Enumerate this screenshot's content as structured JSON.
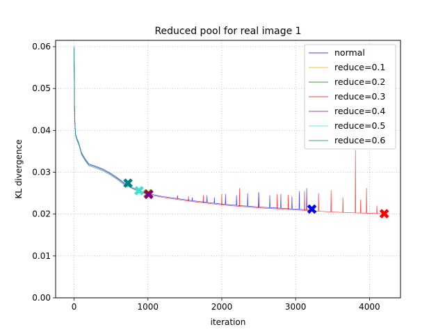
{
  "chart_data": {
    "type": "line",
    "title": "Reduced pool for real image 1",
    "xlabel": "iteration",
    "ylabel": "KL divergence",
    "xlim": [
      -250,
      4420
    ],
    "ylim": [
      0.0,
      0.0615
    ],
    "xticks": [
      0,
      1000,
      2000,
      3000,
      4000
    ],
    "yticks": [
      0.0,
      0.01,
      0.02,
      0.03,
      0.04,
      0.05,
      0.06
    ],
    "xtick_labels": [
      "0",
      "1000",
      "2000",
      "3000",
      "4000"
    ],
    "ytick_labels": [
      "0.00",
      "0.01",
      "0.02",
      "0.03",
      "0.04",
      "0.05",
      "0.06"
    ],
    "grid": true,
    "legend_position": "top-right",
    "base_curve": {
      "x": [
        0,
        2,
        5,
        10,
        20,
        40,
        60,
        80,
        100,
        150,
        200,
        300,
        400,
        500,
        600,
        700,
        800,
        900,
        1000,
        1200,
        1400,
        1600,
        1800,
        2000,
        2200,
        2500,
        2800,
        3000,
        3200,
        3500,
        3800,
        4000,
        4200
      ],
      "y": [
        0.0598,
        0.052,
        0.046,
        0.042,
        0.039,
        0.0378,
        0.037,
        0.0358,
        0.0345,
        0.033,
        0.0318,
        0.0312,
        0.0305,
        0.0295,
        0.0283,
        0.027,
        0.026,
        0.0253,
        0.0247,
        0.024,
        0.0235,
        0.023,
        0.0226,
        0.0222,
        0.0219,
        0.0215,
        0.0212,
        0.021,
        0.0208,
        0.0205,
        0.0203,
        0.0202,
        0.0201
      ]
    },
    "series": [
      {
        "name": "normal",
        "color": "#0000ff",
        "end_x": 3220,
        "end_y": 0.0212,
        "spikes": [
          [
            1400,
            0.0245
          ],
          [
            1600,
            0.024
          ],
          [
            1800,
            0.0245
          ],
          [
            1900,
            0.024
          ],
          [
            2050,
            0.0248
          ],
          [
            2200,
            0.0245
          ],
          [
            2350,
            0.025
          ],
          [
            2500,
            0.0252
          ],
          [
            2650,
            0.0245
          ],
          [
            2800,
            0.0248
          ],
          [
            2950,
            0.0242
          ],
          [
            3050,
            0.0255
          ],
          [
            3150,
            0.0262
          ]
        ]
      },
      {
        "name": "reduce=0.1",
        "color": "#ffa500",
        "end_x": 1000,
        "end_y": 0.0249,
        "spikes": []
      },
      {
        "name": "reduce=0.2",
        "color": "#008000",
        "end_x": 1010,
        "end_y": 0.0248,
        "spikes": []
      },
      {
        "name": "reduce=0.3",
        "color": "#ff0000",
        "end_x": 4200,
        "end_y": 0.0201,
        "spikes": [
          [
            1550,
            0.0243
          ],
          [
            1750,
            0.0245
          ],
          [
            2000,
            0.0248
          ],
          [
            2240,
            0.0262
          ],
          [
            2500,
            0.0252
          ],
          [
            2750,
            0.0248
          ],
          [
            2900,
            0.0246
          ],
          [
            3120,
            0.0255
          ],
          [
            3310,
            0.025
          ],
          [
            3480,
            0.0257
          ],
          [
            3640,
            0.024
          ],
          [
            3810,
            0.0353
          ],
          [
            3880,
            0.0235
          ],
          [
            3960,
            0.0262
          ],
          [
            4100,
            0.022
          ]
        ]
      },
      {
        "name": "reduce=0.4",
        "color": "#800080",
        "end_x": 1010,
        "end_y": 0.0247,
        "spikes": []
      },
      {
        "name": "reduce=0.5",
        "color": "#40e0d0",
        "end_x": 880,
        "end_y": 0.0256,
        "spikes": []
      },
      {
        "name": "reduce=0.6",
        "color": "#008080",
        "end_x": 730,
        "end_y": 0.0274,
        "spikes": []
      }
    ]
  }
}
